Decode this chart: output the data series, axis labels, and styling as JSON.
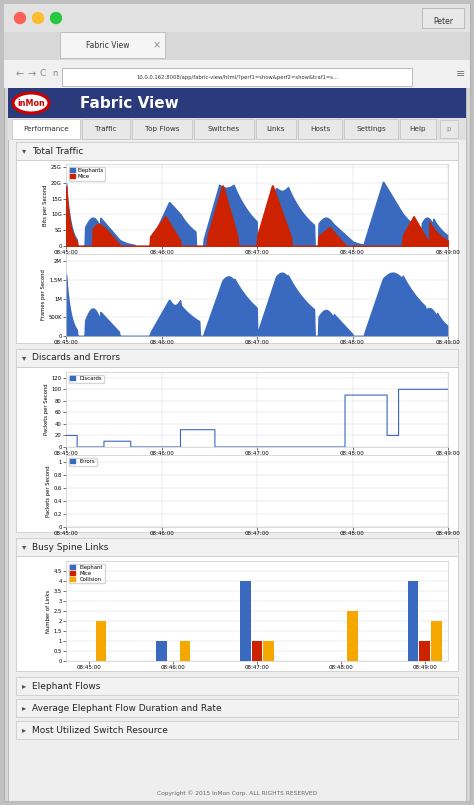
{
  "title": "Fabric View",
  "url": "10.0.0.162:8008/app/fabric-view/html/?perf1=show&perf2=show&traf1=s...",
  "nav_tabs": [
    "Performance",
    "Traffic",
    "Top Flows",
    "Switches",
    "Links",
    "Hosts",
    "Settings",
    "Help"
  ],
  "collapsed_sections": [
    "Elephant Flows",
    "Average Elephant Flow Duration and Rate",
    "Most Utilized Switch Resource"
  ],
  "footer": "Copyright © 2015 InMon Corp. ALL RIGHTS RESERVED",
  "user": "Peter",
  "colors": {
    "nav_bar": "#2b3a7a",
    "blue": "#3a6abf",
    "red": "#cc2200",
    "orange": "#f5a800",
    "panel_border": "#cccccc",
    "section_bg": "#f4f4f4",
    "content_bg": "#eeeeee",
    "chart_bg": "#ffffff",
    "grid_color": "#dddddd",
    "tab_active": "#ffffff",
    "tab_inactive": "#e8e8e8"
  },
  "xticks": [
    "08:45:00",
    "08:46:00",
    "08:47:00",
    "08:48:00",
    "08:49:00"
  ],
  "chart1_yticks_labels": [
    "0",
    "5G",
    "10G",
    "15G",
    "20G",
    "25G"
  ],
  "chart1_yticks_vals": [
    0,
    50,
    100,
    150,
    200,
    250
  ],
  "chart1_ylabel": "Bits per Second",
  "chart2_yticks_labels": [
    "0",
    "500K",
    "1M",
    "1.5M",
    "2M"
  ],
  "chart2_yticks_vals": [
    0,
    0.5,
    1.0,
    1.5,
    2.0
  ],
  "chart2_ylabel": "Frames per Second",
  "chart3_yticks_labels": [
    "0",
    "20",
    "40",
    "60",
    "80",
    "100"
  ],
  "chart3_yticks_vals": [
    0,
    20,
    40,
    60,
    80,
    100
  ],
  "chart3_ylabel": "Packets per Second",
  "chart4_yticks_labels": [
    "0",
    "0.2",
    "0.4",
    "0.6",
    "0.8",
    "1"
  ],
  "chart4_yticks_vals": [
    0,
    0.2,
    0.4,
    0.6,
    0.8,
    1.0
  ],
  "chart4_ylabel": "Packets per Second",
  "chart5_yticks_labels": [
    "0",
    "0.5",
    "1",
    "1.5",
    "2",
    "2.5",
    "3",
    "3.5",
    "4",
    "4.5"
  ],
  "chart5_yticks_vals": [
    0,
    0.5,
    1.0,
    1.5,
    2.0,
    2.5,
    3.0,
    3.5,
    4.0,
    4.5
  ],
  "chart5_ylabel": "Number of Links"
}
